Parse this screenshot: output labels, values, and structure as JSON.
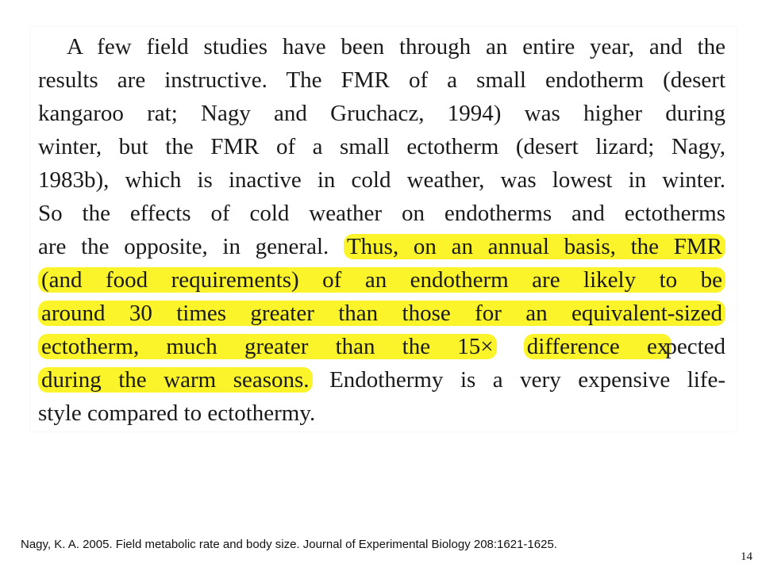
{
  "excerpt": {
    "lines": [
      "A few field studies have been through an entire year, and the",
      "results are instructive. The FMR of a small endotherm (desert",
      "kangaroo rat; Nagy and Gruchacz, 1994) was higher during",
      "winter, but the FMR of a small ectotherm (desert lizard; Nagy,",
      "1983b), which is inactive in cold weather, was lowest in winter.",
      "So the effects of cold weather on endotherms and ectotherms"
    ],
    "line7_plain": "are the opposite, in general.",
    "line7_highlight": "Thus, on an annual basis, the FMR",
    "line8_highlight": "(and food requirements) of an endotherm are likely to be",
    "line9_highlight": "around 30 times greater than those for an equivalent-sized",
    "line10_highlight_a": "ectotherm, much greater than the 15×",
    "line10_highlight_b": "difference ex",
    "line10_plain": "pected",
    "line11_highlight": "during the warm seasons.",
    "line11_plain": "Endothermy is a very expensive life-",
    "line12": "style compared to ectothermy.",
    "highlight_color": "#fbf42a"
  },
  "citation": "Nagy, K. A. 2005. Field metabolic rate and body size. Journal of Experimental Biology 208:1621-1625.",
  "page_number": "14"
}
